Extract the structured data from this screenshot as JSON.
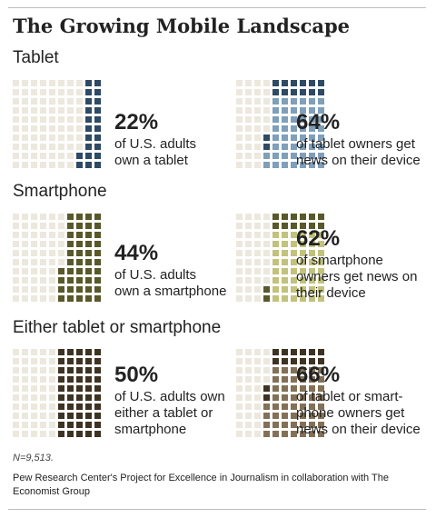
{
  "title": "The Growing Mobile Landscape",
  "sections": [
    {
      "title": "Tablet"
    },
    {
      "title": "Smartphone"
    },
    {
      "title": "Either tablet or smartphone"
    }
  ],
  "chart_data": [
    {
      "type": "waffle",
      "section": "Tablet",
      "percent": 22,
      "label": "22%",
      "description": "of U.S. adults\nown a tablet",
      "color": "#2e4a64",
      "empty_color": "#ece8dd"
    },
    {
      "type": "waffle",
      "section": "Tablet",
      "percent": 64,
      "label": "64%",
      "description": "of tablet owners get\nnews on their device",
      "color": "#7f9fba",
      "top_color": "#2e4a64",
      "empty_color": "#ece8dd"
    },
    {
      "type": "waffle",
      "section": "Smartphone",
      "percent": 44,
      "label": "44%",
      "description": "of U.S. adults\nown a smartphone",
      "color": "#58582a",
      "empty_color": "#ece8dd"
    },
    {
      "type": "waffle",
      "section": "Smartphone",
      "percent": 62,
      "label": "62%",
      "description": "of smartphone\nowners get news on\ntheir device",
      "color": "#c2c27c",
      "top_color": "#58582a",
      "empty_color": "#ece8dd"
    },
    {
      "type": "waffle",
      "section": "Either tablet or smartphone",
      "percent": 50,
      "label": "50%",
      "description": "of U.S. adults own\neither a tablet or\nsmartphone",
      "color": "#3e3322",
      "empty_color": "#ece8dd"
    },
    {
      "type": "waffle",
      "section": "Either tablet or smartphone",
      "percent": 66,
      "label": "66%",
      "description": "of tablet or smart-\nphone owners get\nnews on their device",
      "color": "#837157",
      "top_color": "#3e3322",
      "empty_color": "#ece8dd"
    }
  ],
  "footnote": "N=9,513.",
  "source": "Pew Research Center's Project for Excellence in Journalism in collaboration with The Economist Group"
}
